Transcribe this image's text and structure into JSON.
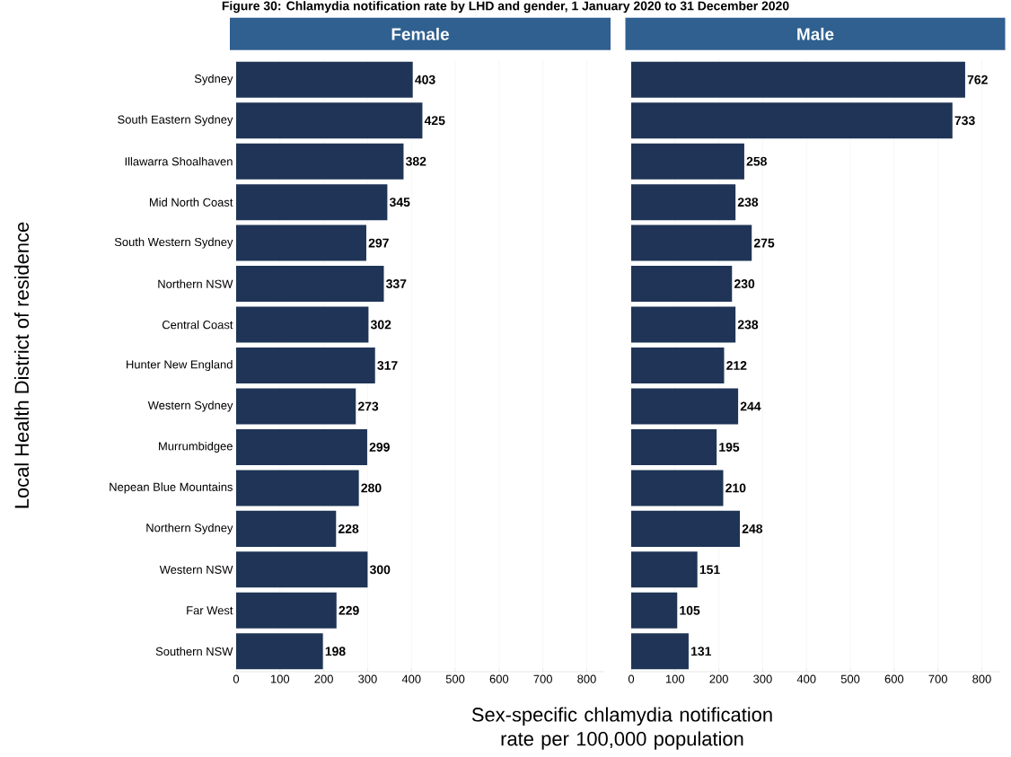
{
  "chart_data": [
    {
      "type": "bar",
      "orientation": "horizontal",
      "title": "Figure 30: Chlamydia notification rate by LHD and gender, 1 January 2020 to 31 December 2020",
      "subtitle": "Female",
      "ylabel": "Local Health District of residence",
      "xlabel": "Sex-specific chlamydia notification rate per 100,000 population",
      "categories": [
        "Sydney",
        "South Eastern Sydney",
        "Illawarra Shoalhaven",
        "Mid North Coast",
        "South Western Sydney",
        "Northern NSW",
        "Central Coast",
        "Hunter New England",
        "Western Sydney",
        "Murrumbidgee",
        "Nepean Blue Mountains",
        "Northern Sydney",
        "Western NSW",
        "Far West",
        "Southern NSW"
      ],
      "values": [
        403,
        425,
        382,
        345,
        297,
        337,
        302,
        317,
        273,
        299,
        280,
        228,
        300,
        229,
        198
      ],
      "color": "#1f3456",
      "data_labels": true,
      "grid": "x",
      "xlim": [
        0,
        840
      ],
      "xticks": [
        0,
        100,
        200,
        300,
        400,
        500,
        600,
        700,
        800
      ]
    },
    {
      "type": "bar",
      "orientation": "horizontal",
      "title": "Male",
      "tick_labels": "x",
      "categories": [
        null,
        null,
        null,
        null,
        null,
        null,
        null,
        null,
        null,
        null,
        null,
        null,
        null,
        null,
        null
      ],
      "values": [
        762,
        733,
        258,
        238,
        275,
        230,
        238,
        212,
        244,
        195,
        210,
        248,
        151,
        105,
        131
      ],
      "color": "#1f3456",
      "data_labels": true,
      "grid": "x",
      "xlim": [
        0,
        840
      ],
      "xticks": [
        0,
        100,
        200,
        300,
        400,
        500,
        600,
        700,
        800
      ]
    }
  ]
}
